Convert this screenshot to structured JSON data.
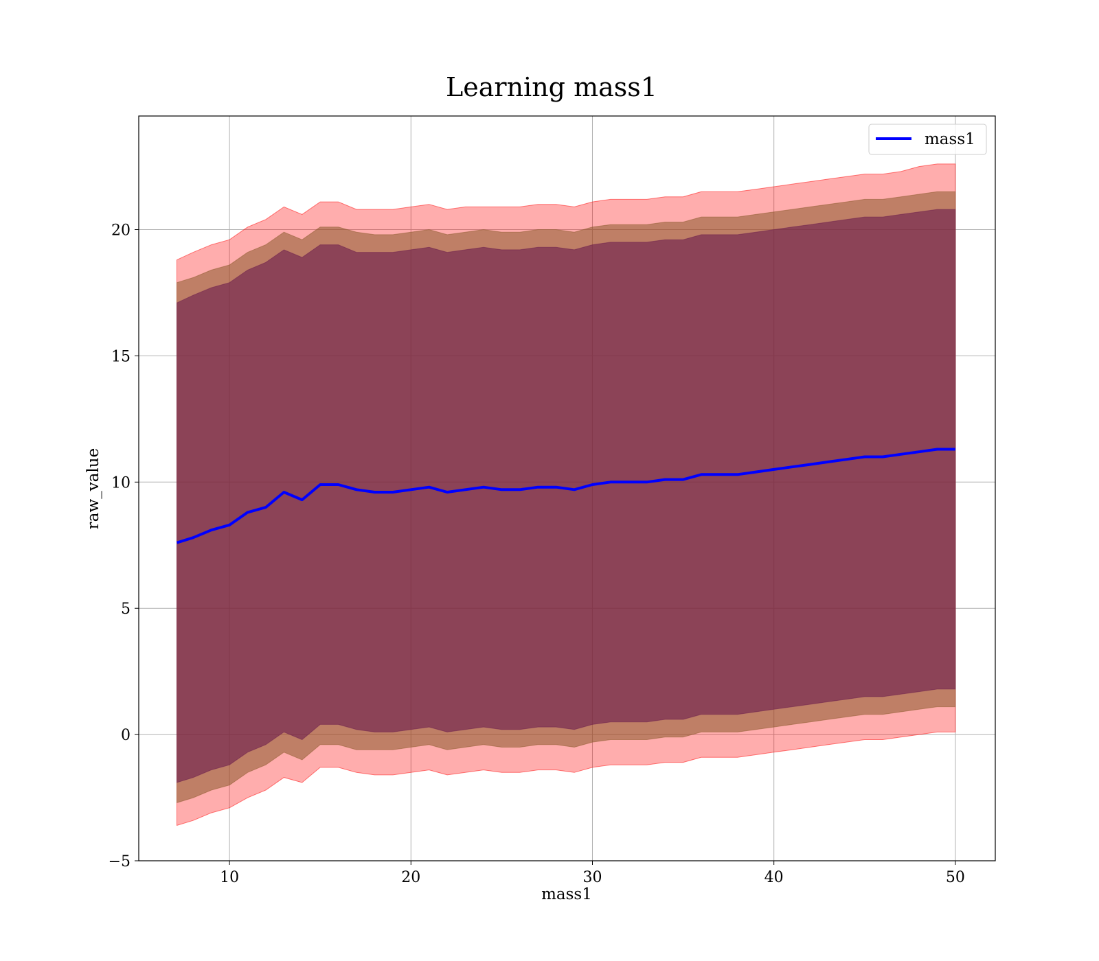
{
  "chart_data": {
    "type": "line",
    "title": "Learning mass1",
    "xlabel": "mass1",
    "ylabel": "raw_value",
    "xlim": [
      5,
      52.2
    ],
    "ylim": [
      -5,
      24.5
    ],
    "xticks": [
      10,
      20,
      30,
      40,
      50
    ],
    "yticks": [
      -5,
      0,
      5,
      10,
      15,
      20
    ],
    "xtick_labels": [
      "10",
      "20",
      "30",
      "40",
      "50"
    ],
    "ytick_labels": [
      "−5",
      "0",
      "5",
      "10",
      "15",
      "20"
    ],
    "grid": true,
    "legend": {
      "position": "top-right",
      "entries": [
        "mass1"
      ]
    },
    "colors": {
      "line": "#0000ff",
      "band_outer": "#ff0000",
      "band_middle": "#8b5a2b",
      "band_inner": "#6a1b4d"
    },
    "series": [
      {
        "name": "mass1",
        "x": [
          7.1,
          8,
          9,
          10,
          11,
          12,
          13,
          14,
          15,
          16,
          17,
          18,
          19,
          20,
          21,
          22,
          23,
          24,
          25,
          26,
          27,
          28,
          29,
          30,
          31,
          32,
          33,
          34,
          35,
          36,
          37,
          38,
          39,
          40,
          41,
          42,
          43,
          44,
          45,
          46,
          47,
          48,
          49,
          50
        ],
        "y": [
          7.6,
          7.8,
          8.1,
          8.3,
          8.8,
          9.0,
          9.6,
          9.3,
          9.9,
          9.9,
          9.7,
          9.6,
          9.6,
          9.7,
          9.8,
          9.6,
          9.7,
          9.8,
          9.7,
          9.7,
          9.8,
          9.8,
          9.7,
          9.9,
          10.0,
          10.0,
          10.0,
          10.1,
          10.1,
          10.3,
          10.3,
          10.3,
          10.4,
          10.5,
          10.6,
          10.7,
          10.8,
          10.9,
          11.0,
          11.0,
          11.1,
          11.2,
          11.3,
          11.3
        ]
      }
    ],
    "bands": [
      {
        "label": "outer",
        "x": [
          7.1,
          8,
          9,
          10,
          11,
          12,
          13,
          14,
          15,
          16,
          17,
          18,
          19,
          20,
          21,
          22,
          23,
          24,
          25,
          26,
          27,
          28,
          29,
          30,
          31,
          32,
          33,
          34,
          35,
          36,
          37,
          38,
          39,
          40,
          41,
          42,
          43,
          44,
          45,
          46,
          47,
          48,
          49,
          50
        ],
        "upper": [
          18.8,
          19.1,
          19.4,
          19.6,
          20.1,
          20.4,
          20.9,
          20.6,
          21.1,
          21.1,
          20.8,
          20.8,
          20.8,
          20.9,
          21.0,
          20.8,
          20.9,
          20.9,
          20.9,
          20.9,
          21.0,
          21.0,
          20.9,
          21.1,
          21.2,
          21.2,
          21.2,
          21.3,
          21.3,
          21.5,
          21.5,
          21.5,
          21.6,
          21.7,
          21.8,
          21.9,
          22.0,
          22.1,
          22.2,
          22.2,
          22.3,
          22.5,
          22.6,
          22.6
        ],
        "lower": [
          -3.6,
          -3.4,
          -3.1,
          -2.9,
          -2.5,
          -2.2,
          -1.7,
          -1.9,
          -1.3,
          -1.3,
          -1.5,
          -1.6,
          -1.6,
          -1.5,
          -1.4,
          -1.6,
          -1.5,
          -1.4,
          -1.5,
          -1.5,
          -1.4,
          -1.4,
          -1.5,
          -1.3,
          -1.2,
          -1.2,
          -1.2,
          -1.1,
          -1.1,
          -0.9,
          -0.9,
          -0.9,
          -0.8,
          -0.7,
          -0.6,
          -0.5,
          -0.4,
          -0.3,
          -0.2,
          -0.2,
          -0.1,
          0.0,
          0.1,
          0.1
        ]
      },
      {
        "label": "middle",
        "x": [
          7.1,
          8,
          9,
          10,
          11,
          12,
          13,
          14,
          15,
          16,
          17,
          18,
          19,
          20,
          21,
          22,
          23,
          24,
          25,
          26,
          27,
          28,
          29,
          30,
          31,
          32,
          33,
          34,
          35,
          36,
          37,
          38,
          39,
          40,
          41,
          42,
          43,
          44,
          45,
          46,
          47,
          48,
          49,
          50
        ],
        "upper": [
          17.9,
          18.1,
          18.4,
          18.6,
          19.1,
          19.4,
          19.9,
          19.6,
          20.1,
          20.1,
          19.9,
          19.8,
          19.8,
          19.9,
          20.0,
          19.8,
          19.9,
          20.0,
          19.9,
          19.9,
          20.0,
          20.0,
          19.9,
          20.1,
          20.2,
          20.2,
          20.2,
          20.3,
          20.3,
          20.5,
          20.5,
          20.5,
          20.6,
          20.7,
          20.8,
          20.9,
          21.0,
          21.1,
          21.2,
          21.2,
          21.3,
          21.4,
          21.5,
          21.5
        ],
        "lower": [
          -2.7,
          -2.5,
          -2.2,
          -2.0,
          -1.5,
          -1.2,
          -0.7,
          -1.0,
          -0.4,
          -0.4,
          -0.6,
          -0.6,
          -0.6,
          -0.5,
          -0.4,
          -0.6,
          -0.5,
          -0.4,
          -0.5,
          -0.5,
          -0.4,
          -0.4,
          -0.5,
          -0.3,
          -0.2,
          -0.2,
          -0.2,
          -0.1,
          -0.1,
          0.1,
          0.1,
          0.1,
          0.2,
          0.3,
          0.4,
          0.5,
          0.6,
          0.7,
          0.8,
          0.8,
          0.9,
          1.0,
          1.1,
          1.1
        ]
      },
      {
        "label": "inner",
        "x": [
          7.1,
          8,
          9,
          10,
          11,
          12,
          13,
          14,
          15,
          16,
          17,
          18,
          19,
          20,
          21,
          22,
          23,
          24,
          25,
          26,
          27,
          28,
          29,
          30,
          31,
          32,
          33,
          34,
          35,
          36,
          37,
          38,
          39,
          40,
          41,
          42,
          43,
          44,
          45,
          46,
          47,
          48,
          49,
          50
        ],
        "upper": [
          17.1,
          17.4,
          17.7,
          17.9,
          18.4,
          18.7,
          19.2,
          18.9,
          19.4,
          19.4,
          19.1,
          19.1,
          19.1,
          19.2,
          19.3,
          19.1,
          19.2,
          19.3,
          19.2,
          19.2,
          19.3,
          19.3,
          19.2,
          19.4,
          19.5,
          19.5,
          19.5,
          19.6,
          19.6,
          19.8,
          19.8,
          19.8,
          19.9,
          20.0,
          20.1,
          20.2,
          20.3,
          20.4,
          20.5,
          20.5,
          20.6,
          20.7,
          20.8,
          20.8
        ],
        "lower": [
          -1.9,
          -1.7,
          -1.4,
          -1.2,
          -0.7,
          -0.4,
          0.1,
          -0.2,
          0.4,
          0.4,
          0.2,
          0.1,
          0.1,
          0.2,
          0.3,
          0.1,
          0.2,
          0.3,
          0.2,
          0.2,
          0.3,
          0.3,
          0.2,
          0.4,
          0.5,
          0.5,
          0.5,
          0.6,
          0.6,
          0.8,
          0.8,
          0.8,
          0.9,
          1.0,
          1.1,
          1.2,
          1.3,
          1.4,
          1.5,
          1.5,
          1.6,
          1.7,
          1.8,
          1.8
        ]
      }
    ]
  }
}
